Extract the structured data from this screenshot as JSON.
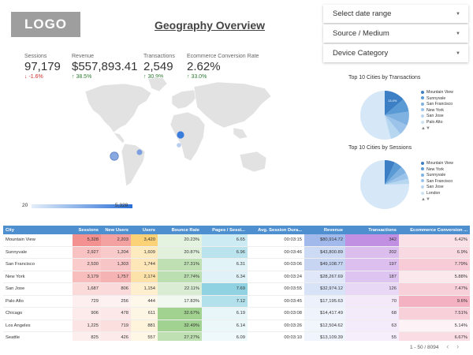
{
  "header": {
    "logo": "LOGO",
    "title": "Geography Overview"
  },
  "filters": [
    {
      "label": "Select date range"
    },
    {
      "label": "Source / Medium"
    },
    {
      "label": "Device Category"
    }
  ],
  "kpis": [
    {
      "label": "Sessions",
      "value": "97,179",
      "change": "↓ -1.6%",
      "dir": "neg"
    },
    {
      "label": "Revenue",
      "value": "$557,893.41",
      "change": "↑ 38.5%",
      "dir": "pos"
    },
    {
      "label": "Transactions",
      "value": "2,549",
      "change": "↑ 30.9%",
      "dir": "pos"
    },
    {
      "label": "Ecommerce Conversion Rate",
      "value": "2.62%",
      "change": "↑ 33.0%",
      "dir": "pos"
    }
  ],
  "map": {
    "scale_min": "20",
    "scale_max": "5,328"
  },
  "pie1": {
    "title": "Top 10 Cities by Transactions",
    "label": "13.4%",
    "legend": [
      "Mountain View",
      "Sunnyvale",
      "San Francisco",
      "New York",
      "San Jose",
      "Palo Alto"
    ],
    "nav": "▲▼"
  },
  "pie2": {
    "title": "Top 10 Cities by Sessions",
    "legend": [
      "Mountain View",
      "New York",
      "Sunnyvale",
      "San Francisco",
      "San Jose",
      "London"
    ],
    "nav": "▲▼"
  },
  "table": {
    "columns": [
      "City",
      "Sessions",
      "New Users",
      "Users",
      "Bounce Rate",
      "Pages / Sessi...",
      "Avg. Session Dura...",
      "Revenue",
      "Transactions",
      "Ecommerce Conversion ..."
    ],
    "rows": [
      [
        "Mountain View",
        "5,328",
        "2,203",
        "3,420",
        "20.23%",
        "6.65",
        "00:03:15",
        "$80,914.72",
        "342",
        "6.42%"
      ],
      [
        "Sunnyvale",
        "2,927",
        "1,204",
        "1,609",
        "20.87%",
        "6.96",
        "00:03:46",
        "$43,800.89",
        "202",
        "6.9%"
      ],
      [
        "San Francisco",
        "2,530",
        "1,303",
        "1,744",
        "27.31%",
        "6.31",
        "00:03:06",
        "$49,108.77",
        "197",
        "7.79%"
      ],
      [
        "New York",
        "3,179",
        "1,757",
        "2,174",
        "27.74%",
        "6.34",
        "00:03:24",
        "$28,267.69",
        "187",
        "5.88%"
      ],
      [
        "San Jose",
        "1,687",
        "806",
        "1,154",
        "22.11%",
        "7.69",
        "00:03:55",
        "$32,974.12",
        "126",
        "7.47%"
      ],
      [
        "Palo Alto",
        "729",
        "256",
        "444",
        "17.83%",
        "7.12",
        "00:03:45",
        "$17,195.63",
        "70",
        "9.6%"
      ],
      [
        "Chicago",
        "906",
        "478",
        "611",
        "32.67%",
        "6.19",
        "00:03:08",
        "$14,417.49",
        "68",
        "7.51%"
      ],
      [
        "Los Angeles",
        "1,225",
        "719",
        "881",
        "32.49%",
        "6.14",
        "00:03:26",
        "$12,504.62",
        "63",
        "5.14%"
      ],
      [
        "Seattle",
        "825",
        "426",
        "557",
        "27.27%",
        "6.09",
        "00:03:10",
        "$13,109.39",
        "55",
        "6.67%"
      ]
    ]
  },
  "pager": {
    "text": "1 - 50 / 8094",
    "prev": "‹",
    "next": "›"
  }
}
